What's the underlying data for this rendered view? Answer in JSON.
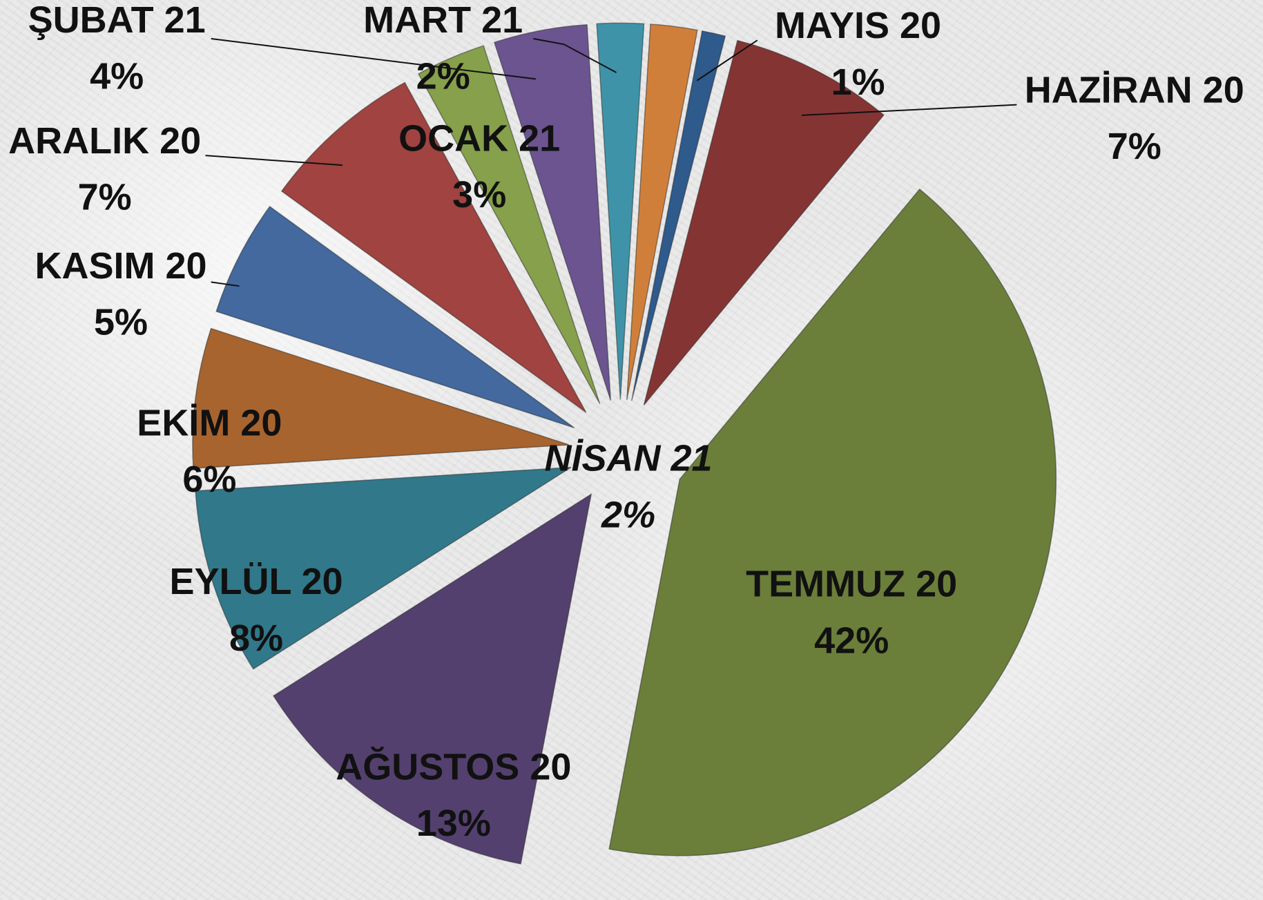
{
  "chart_data": {
    "type": "pie",
    "categories": [
      "MAYIS 20",
      "HAZİRAN 20",
      "TEMMUZ 20",
      "AĞUSTOS 20",
      "EYLÜL 20",
      "EKİM 20",
      "KASIM 20",
      "ARALIK 20",
      "OCAK 21",
      "ŞUBAT 21",
      "MART 21",
      "NİSAN 21"
    ],
    "values": [
      1,
      7,
      42,
      13,
      8,
      6,
      5,
      7,
      3,
      4,
      2,
      2
    ],
    "value_labels": [
      "1%",
      "7%",
      "42%",
      "13%",
      "8%",
      "6%",
      "5%",
      "7%",
      "3%",
      "4%",
      "2%",
      "2%"
    ],
    "colors": [
      "#2e5a8c",
      "#853434",
      "#6b7f3a",
      "#53406e",
      "#31788a",
      "#a8642e",
      "#43699e",
      "#a04341",
      "#86a04b",
      "#6b5490",
      "#3f93a8",
      "#d07f3a"
    ]
  }
}
